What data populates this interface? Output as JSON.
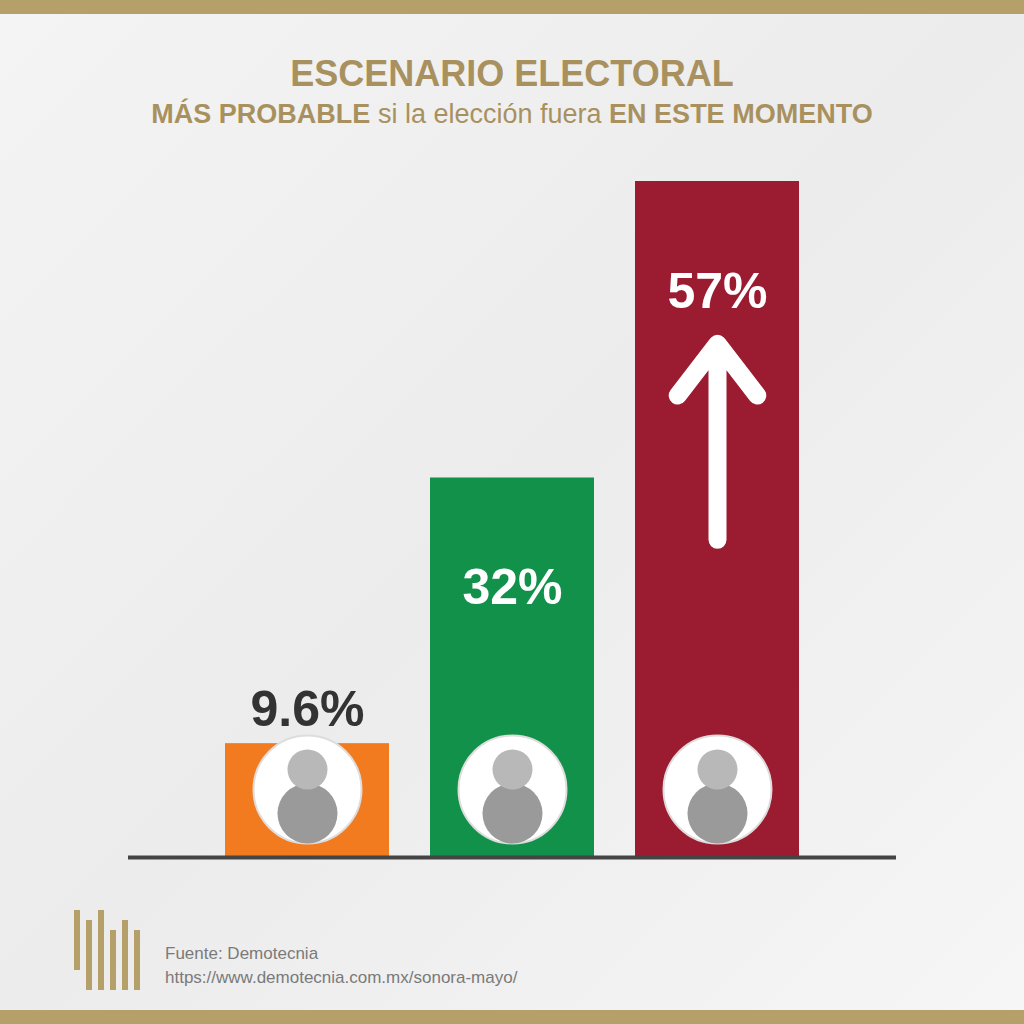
{
  "chart_data": {
    "type": "bar",
    "title": "ESCENARIO ELECTORAL",
    "subtitle": "MÁS PROBABLE si la elección fuera EN ESTE MOMENTO",
    "categories": [
      null,
      null,
      null
    ],
    "values": [
      9.6,
      32,
      57
    ],
    "value_labels": [
      "9.6%",
      "32%",
      "57%"
    ],
    "colors": [
      "#f27a1f",
      "#11914a",
      "#9b1b30"
    ],
    "ylim": [
      0,
      57
    ],
    "data_labels": true,
    "tick_labels": false,
    "grid": false,
    "annotations": [
      "Fuente: Demotecnia",
      "https://www.demotecnia.com.mx/sonora-mayo/"
    ]
  }
}
